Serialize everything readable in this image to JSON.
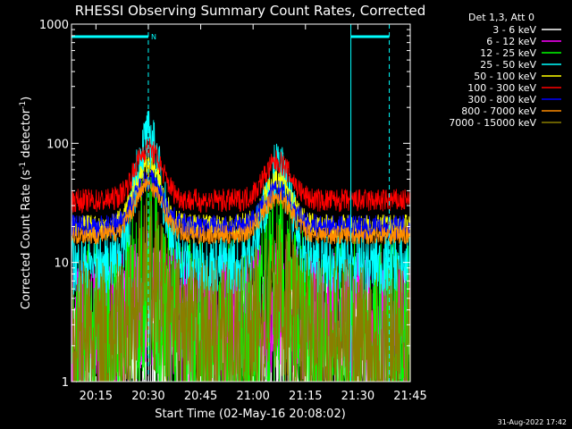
{
  "chart_data": {
    "type": "line",
    "title": "RHESSI Observing Summary Count Rates, Corrected",
    "xlabel": "Start Time (02-May-16 20:08:02)",
    "ylabel_main": "Corrected Count Rate (s",
    "ylabel_sup1": "-1",
    "ylabel_mid": " detector",
    "ylabel_sup2": "-1",
    "ylabel_end": ")",
    "yscale": "log",
    "ylim": [
      1,
      1000
    ],
    "xlim_minutes": [
      0,
      97
    ],
    "x_ticks": [
      {
        "label": "20:15",
        "t": 7
      },
      {
        "label": "20:30",
        "t": 22
      },
      {
        "label": "20:45",
        "t": 37
      },
      {
        "label": "21:00",
        "t": 52
      },
      {
        "label": "21:15",
        "t": 67
      },
      {
        "label": "21:30",
        "t": 82
      },
      {
        "label": "21:45",
        "t": 97
      }
    ],
    "y_ticks": [
      {
        "label": "1",
        "v": 1
      },
      {
        "label": "10",
        "v": 10
      },
      {
        "label": "100",
        "v": 100
      },
      {
        "label": "1000",
        "v": 1000
      }
    ],
    "legend_header": "Det 1,3, Att 0",
    "series": [
      {
        "name": "3 - 6 keV",
        "color": "#ffffff",
        "level": 1.6,
        "noise": 0.8,
        "peak": 2.4
      },
      {
        "name": "6 - 12 keV",
        "color": "#ff00ff",
        "level": 3.2,
        "noise": 0.6,
        "peak": 5
      },
      {
        "name": "12 - 25 keV",
        "color": "#00ff00",
        "level": 2,
        "noise": 0.9,
        "peak": 8
      },
      {
        "name": "25 - 50 keV",
        "color": "#00ffff",
        "level": 9.5,
        "noise": 0.25,
        "peak": 110
      },
      {
        "name": "50 - 100 keV",
        "color": "#ffff00",
        "level": 20,
        "noise": 0.1,
        "peak": 65
      },
      {
        "name": "100 - 300 keV",
        "color": "#ff0000",
        "level": 33,
        "noise": 0.1,
        "peak": 90
      },
      {
        "name": "300 - 800 keV",
        "color": "#0000ff",
        "level": 20,
        "noise": 0.1,
        "peak": 50
      },
      {
        "name": "800 - 7000 keV",
        "color": "#ff8c00",
        "level": 17,
        "noise": 0.08,
        "peak": 45
      },
      {
        "name": "7000 - 15000 keV",
        "color": "#8b7d00",
        "level": 2.2,
        "noise": 0.7,
        "peak": 7
      }
    ],
    "peaks_minutes": [
      22,
      59
    ],
    "night_bar_label": "N",
    "saa_markers_minutes": [
      0,
      22,
      80,
      91
    ]
  },
  "footer": {
    "timestamp": "31-Aug-2022 17:42"
  }
}
